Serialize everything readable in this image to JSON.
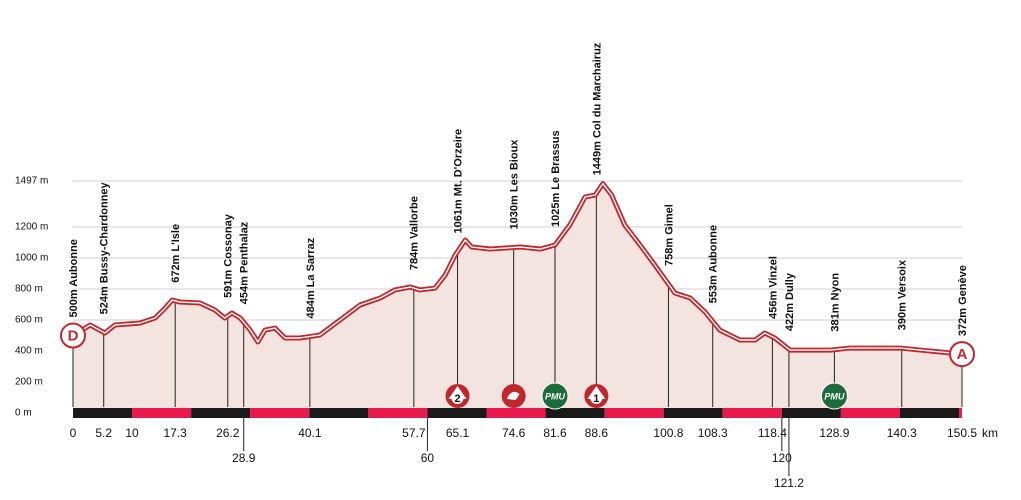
{
  "chart_data": {
    "type": "profile",
    "xlim": [
      0,
      150.5
    ],
    "ylim": [
      0,
      1497
    ],
    "yticks": [
      {
        "value": 0,
        "label": "0 m"
      },
      {
        "value": 200,
        "label": "200 m"
      },
      {
        "value": 400,
        "label": "400 m"
      },
      {
        "value": 600,
        "label": "600 m"
      },
      {
        "value": 800,
        "label": "800 m"
      },
      {
        "value": 1000,
        "label": "1000 m"
      },
      {
        "value": 1200,
        "label": "1200 m"
      },
      {
        "value": 1497,
        "label": "1497 m"
      }
    ],
    "grid": true,
    "x_unit": "km",
    "xticks": [
      0,
      5.2,
      10,
      17.3,
      26.2,
      28.9,
      40.1,
      57.7,
      60,
      65.1,
      74.6,
      81.6,
      88.6,
      100.8,
      108.3,
      118.4,
      120,
      121.2,
      128.9,
      140.3,
      150.5
    ],
    "km_band": 10,
    "colors": {
      "line": "#c0272d",
      "fill": "#f4e4e0",
      "band_dark": "#1a1a1a",
      "band_red": "#e8194b",
      "pmu": "#1d6b3a"
    },
    "profile": {
      "km": [
        0,
        2.9,
        5.4,
        7.1,
        11.3,
        13.9,
        15.6,
        16.8,
        18.1,
        21.5,
        24.0,
        25.7,
        26.9,
        28.3,
        30.0,
        31.3,
        32.5,
        34.2,
        35.9,
        38.4,
        41.8,
        45.2,
        48.6,
        52.0,
        54.5,
        57.1,
        58.7,
        61.3,
        63.0,
        64.7,
        66.4,
        67.5,
        70.6,
        75.7,
        79.1,
        81.6,
        84.1,
        86.7,
        88.4,
        89.7,
        91.2,
        93.4,
        96.0,
        98.5,
        101.9,
        104.5,
        107.0,
        109.5,
        112.9,
        115.5,
        117.1,
        118.8,
        121.4,
        124.8,
        128.2,
        131.5,
        140.0,
        150.5
      ],
      "elevation": [
        500,
        568,
        516,
        568,
        580,
        613,
        677,
        729,
        716,
        710,
        665,
        613,
        645,
        613,
        535,
        458,
        535,
        548,
        484,
        484,
        503,
        600,
        697,
        742,
        794,
        813,
        794,
        806,
        890,
        1019,
        1116,
        1071,
        1058,
        1071,
        1058,
        1084,
        1213,
        1394,
        1406,
        1480,
        1406,
        1213,
        1084,
        955,
        774,
        742,
        652,
        535,
        471,
        471,
        516,
        484,
        406,
        406,
        406,
        419,
        419,
        380
      ]
    },
    "waypoints": [
      {
        "x": 0,
        "label": "500m Aubonne"
      },
      {
        "x": 5.2,
        "label": "524m Bussy-Chardonney"
      },
      {
        "x": 17.3,
        "label": "672m L'Isle"
      },
      {
        "x": 26.2,
        "label": "591m Cossonay"
      },
      {
        "x": 28.9,
        "label": "454m Penthalaz"
      },
      {
        "x": 40.1,
        "label": "484m La Sarraz"
      },
      {
        "x": 57.7,
        "label": "784m Vallorbe"
      },
      {
        "x": 65.1,
        "label": "1061m Mt. D'Orzeire"
      },
      {
        "x": 74.6,
        "label": "1030m Les Bioux"
      },
      {
        "x": 81.6,
        "label": "1025m Le Brassus"
      },
      {
        "x": 88.6,
        "label": "1449m Col du Marchairuz"
      },
      {
        "x": 100.8,
        "label": "758m Gimel"
      },
      {
        "x": 108.3,
        "label": "553m Aubonne"
      },
      {
        "x": 118.4,
        "label": "456m Vinzel"
      },
      {
        "x": 121.2,
        "label": "422m Dully"
      },
      {
        "x": 128.9,
        "label": "381m Nyon"
      },
      {
        "x": 140.3,
        "label": "390m Versoix"
      },
      {
        "x": 150.5,
        "label": "372m Genève"
      }
    ],
    "markers": [
      {
        "x": 65.1,
        "kind": "climb",
        "label": "2"
      },
      {
        "x": 74.6,
        "kind": "sprint"
      },
      {
        "x": 81.6,
        "kind": "pmu",
        "label": "PMU"
      },
      {
        "x": 88.6,
        "kind": "climb",
        "label": "1"
      },
      {
        "x": 128.9,
        "kind": "pmu",
        "label": "PMU"
      }
    ],
    "start_label": "D",
    "finish_label": "A"
  }
}
